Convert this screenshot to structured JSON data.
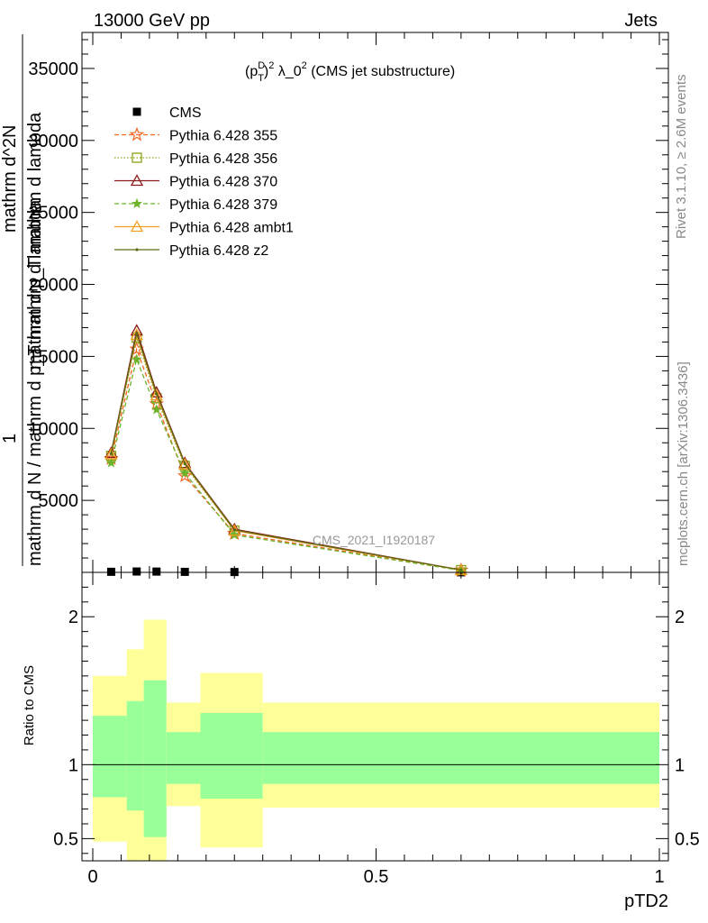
{
  "header": {
    "left": "13000 GeV pp",
    "right": "Jets"
  },
  "side_labels": {
    "rivet": "Rivet 3.1.10, ≥ 2.6M events",
    "mcplots": "mcplots.cern.ch [arXiv:1306.3436]"
  },
  "main_plot": {
    "title": "(p_T^D)^2 λ_0^2 (CMS jet substructure)",
    "title_parts": {
      "open": "(p",
      "sup": "D",
      "sub": "T",
      "close": ")",
      "sup2": "2",
      "mid": " λ_0",
      "sup3": "2",
      "tail": " (CMS jet substructure)"
    },
    "watermark": "CMS_2021_I1920187",
    "ylabel_numerator": "1",
    "ylabel_denominator": "mathrm d N / mathrm d p_T mathrm d lambda",
    "ylabel_side": "mathrm d^2N",
    "ylabel_side_b": "mathrm d p_T mathrm d lambda"
  },
  "ratio_plot": {
    "ylabel": "Ratio to CMS",
    "xlabel": "pTD2"
  },
  "colors": {
    "cms": "#000000",
    "p355": "#f26522",
    "p356": "#8ca31b",
    "p370": "#8b1a1a",
    "p379": "#6cb32a",
    "ambt1": "#f0a020",
    "z2": "#5c6b14",
    "band_inner": "#99ff99",
    "band_outer": "#ffff99"
  },
  "chart_data": [
    {
      "type": "line",
      "panel": "main",
      "title": "(p_T^D)^2 λ_0^2 (CMS jet substructure)",
      "xlim": [
        0,
        1
      ],
      "ylim": [
        0,
        37500
      ],
      "yticks": [
        5000,
        10000,
        15000,
        20000,
        25000,
        30000,
        35000
      ],
      "ytick_labels": [
        "5000",
        "10000",
        "15000",
        "20000",
        "25000",
        "30000",
        "35000"
      ],
      "x": [
        0.0325,
        0.0775,
        0.1125,
        0.1625,
        0.25,
        0.65
      ],
      "legend": "top-left",
      "series": [
        {
          "name": "CMS",
          "marker": "square",
          "values": [
            40,
            60,
            55,
            35,
            25,
            5
          ]
        },
        {
          "name": "Pythia 6.428 355",
          "marker": "star",
          "dash": "dashed",
          "values": [
            7900,
            15500,
            11700,
            6700,
            2700,
            150
          ]
        },
        {
          "name": "Pythia 6.428 356",
          "marker": "open-square",
          "dash": "dotted",
          "values": [
            8100,
            16300,
            12100,
            7400,
            2900,
            160
          ]
        },
        {
          "name": "Pythia 6.428 370",
          "marker": "open-triangle",
          "dash": "solid",
          "values": [
            8300,
            16800,
            12500,
            7600,
            3000,
            170
          ]
        },
        {
          "name": "Pythia 6.428 379",
          "marker": "small-star",
          "dash": "dashed",
          "values": [
            7600,
            14800,
            11300,
            6900,
            2600,
            140
          ]
        },
        {
          "name": "Pythia 6.428 ambt1",
          "marker": "open-triangle",
          "dash": "solid",
          "values": [
            8200,
            16500,
            12300,
            7500,
            2900,
            160
          ]
        },
        {
          "name": "Pythia 6.428 z2",
          "marker": "dot",
          "dash": "solid",
          "values": [
            8250,
            16600,
            12400,
            7550,
            2950,
            165
          ]
        }
      ]
    },
    {
      "type": "area",
      "panel": "ratio",
      "ylabel": "Ratio to CMS",
      "xlabel": "pTD2",
      "xlim": [
        0,
        1
      ],
      "ylim": [
        0.35,
        2.3
      ],
      "yticks": [
        0.5,
        1,
        2
      ],
      "ytick_labels": [
        "0.5",
        "1",
        "2"
      ],
      "xticks": [
        0,
        0.5,
        1
      ],
      "xtick_labels": [
        "0",
        "0.5",
        "1"
      ],
      "bins": [
        {
          "lo": 0.0,
          "hi": 0.06,
          "inner": [
            0.78,
            1.33
          ],
          "outer": [
            0.48,
            1.6
          ]
        },
        {
          "lo": 0.06,
          "hi": 0.09,
          "inner": [
            0.69,
            1.43
          ],
          "outer": [
            0.35,
            1.78
          ]
        },
        {
          "lo": 0.09,
          "hi": 0.13,
          "inner": [
            0.51,
            1.57
          ],
          "outer": [
            0.35,
            1.98
          ]
        },
        {
          "lo": 0.13,
          "hi": 0.19,
          "inner": [
            0.87,
            1.22
          ],
          "outer": [
            0.72,
            1.42
          ]
        },
        {
          "lo": 0.19,
          "hi": 0.3,
          "inner": [
            0.77,
            1.35
          ],
          "outer": [
            0.44,
            1.62
          ]
        },
        {
          "lo": 0.3,
          "hi": 1.0,
          "inner": [
            0.87,
            1.22
          ],
          "outer": [
            0.71,
            1.42
          ]
        }
      ],
      "reference": 1
    }
  ]
}
